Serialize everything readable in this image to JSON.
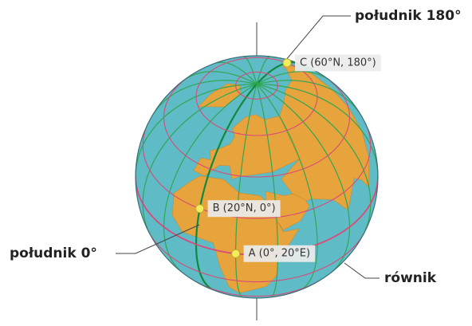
{
  "labels": {
    "meridian_180": "południk 180°",
    "meridian_0": "południk 0°",
    "equator": "równik"
  },
  "points": [
    {
      "label": "C (60°N, 180°)"
    },
    {
      "label": "B (20°N, 0°)"
    },
    {
      "label": "A (0°, 20°E)"
    }
  ]
}
